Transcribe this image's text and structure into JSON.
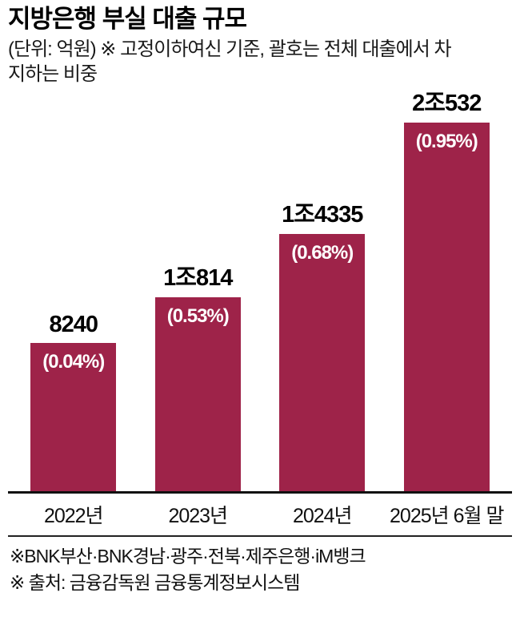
{
  "header": {
    "title": "지방은행 부실 대출 규모",
    "subtitle": "(단위: 억원) ※ 고정이하여신 기준, 괄호는 전체 대출에서 차지하는 비중"
  },
  "chart_data": {
    "type": "bar",
    "title": "지방은행 부실 대출 규모",
    "unit": "억원",
    "categories": [
      "2022년",
      "2023년",
      "2024년",
      "2025년 6월 말"
    ],
    "values": [
      8240,
      10814,
      14335,
      20532
    ],
    "value_labels": [
      "8240",
      "1조814",
      "1조4335",
      "2조532"
    ],
    "pct_labels": [
      "(0.04%)",
      "(0.53%)",
      "(0.68%)",
      "(0.95%)"
    ],
    "bar_color": "#9e2349",
    "ylim": [
      0,
      20532
    ],
    "grid": false,
    "legend": false
  },
  "footnotes": {
    "banks": "※BNK부산·BNK경남·광주·전북·제주은행·iM뱅크",
    "source": "※ 출처: 금융감독원 금융통계정보시스템"
  }
}
